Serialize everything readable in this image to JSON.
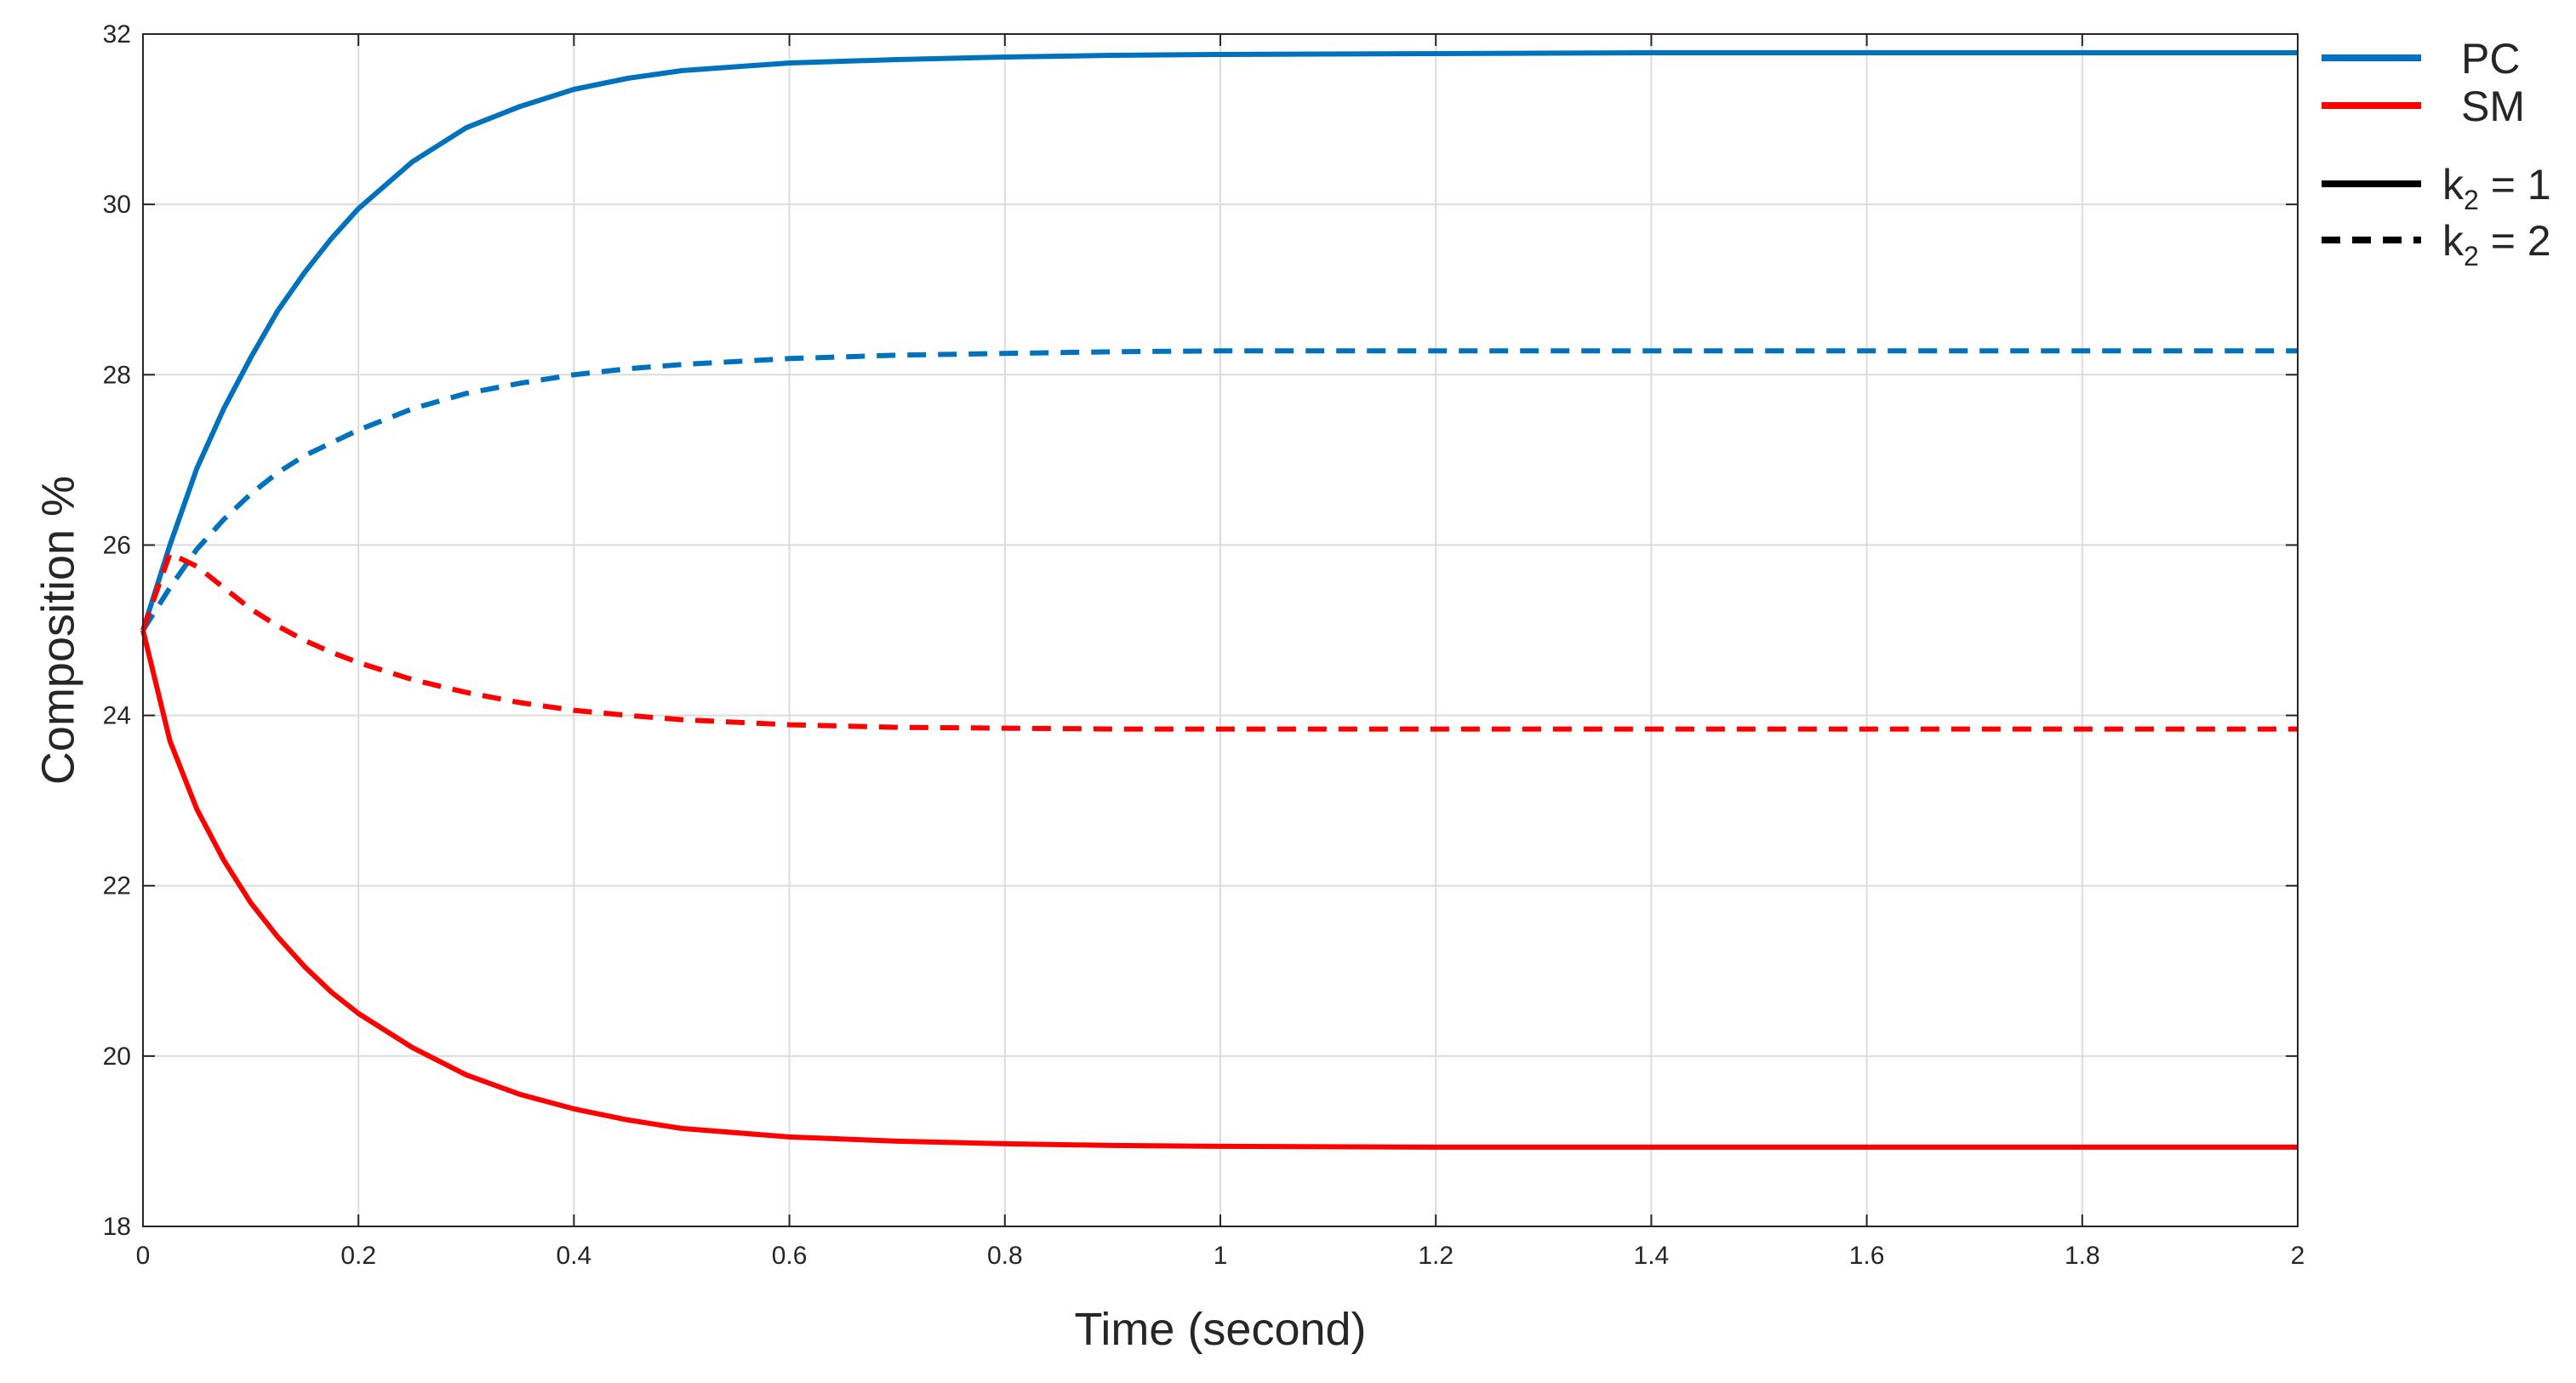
{
  "chart_data": {
    "type": "line",
    "title": "",
    "xlabel": "Time (second)",
    "ylabel": "Composition %",
    "xlim": [
      0,
      2
    ],
    "ylim": [
      18,
      32
    ],
    "xticks": [
      0,
      0.2,
      0.4,
      0.6,
      0.8,
      1,
      1.2,
      1.4,
      1.6,
      1.8,
      2
    ],
    "xtick_labels": [
      "0",
      "0.2",
      "0.4",
      "0.6",
      "0.8",
      "1",
      "1.2",
      "1.4",
      "1.6",
      "1.8",
      "2"
    ],
    "yticks": [
      18,
      20,
      22,
      24,
      26,
      28,
      30,
      32
    ],
    "ytick_labels": [
      "18",
      "20",
      "22",
      "24",
      "26",
      "28",
      "30",
      "32"
    ],
    "grid": true,
    "legend_position": "outside-top-right",
    "legend": {
      "colors": [
        {
          "label": "PC",
          "color": "#0072BD"
        },
        {
          "label": "SM",
          "color": "#FF0000"
        }
      ],
      "styles": [
        {
          "base": "k",
          "sub": "2",
          "rest": " = 1",
          "style": "solid"
        },
        {
          "base": "k",
          "sub": "2",
          "rest": " = 2",
          "style": "dashed"
        }
      ]
    },
    "x": [
      0,
      0.025,
      0.05,
      0.075,
      0.1,
      0.125,
      0.15,
      0.175,
      0.2,
      0.25,
      0.3,
      0.35,
      0.4,
      0.45,
      0.5,
      0.6,
      0.7,
      0.8,
      0.9,
      1.0,
      1.2,
      1.4,
      1.6,
      1.8,
      2.0
    ],
    "series": [
      {
        "compound": "PC",
        "k2": "1",
        "color": "#0072BD",
        "style": "solid",
        "values": [
          25.0,
          26.0,
          26.9,
          27.6,
          28.2,
          28.75,
          29.2,
          29.6,
          29.95,
          30.5,
          30.9,
          31.15,
          31.35,
          31.48,
          31.57,
          31.66,
          31.7,
          31.73,
          31.75,
          31.76,
          31.77,
          31.78,
          31.78,
          31.78,
          31.78
        ]
      },
      {
        "compound": "PC",
        "k2": "2",
        "color": "#0072BD",
        "style": "dashed",
        "values": [
          25.0,
          25.5,
          25.95,
          26.3,
          26.6,
          26.85,
          27.05,
          27.2,
          27.35,
          27.6,
          27.78,
          27.9,
          28.0,
          28.07,
          28.12,
          28.19,
          28.23,
          28.25,
          28.27,
          28.28,
          28.28,
          28.28,
          28.28,
          28.28,
          28.28
        ]
      },
      {
        "compound": "SM",
        "k2": "1",
        "color": "#FF0000",
        "style": "solid",
        "values": [
          25.0,
          23.7,
          22.9,
          22.3,
          21.8,
          21.4,
          21.05,
          20.75,
          20.5,
          20.1,
          19.78,
          19.55,
          19.38,
          19.25,
          19.15,
          19.05,
          19.0,
          18.97,
          18.95,
          18.94,
          18.93,
          18.93,
          18.93,
          18.93,
          18.93
        ]
      },
      {
        "compound": "SM",
        "k2": "2",
        "color": "#FF0000",
        "style": "dashed",
        "values": [
          25.0,
          25.9,
          25.75,
          25.5,
          25.25,
          25.05,
          24.88,
          24.74,
          24.62,
          24.42,
          24.27,
          24.15,
          24.06,
          24.0,
          23.95,
          23.89,
          23.86,
          23.85,
          23.84,
          23.84,
          23.84,
          23.84,
          23.84,
          23.84,
          23.84
        ]
      }
    ]
  }
}
